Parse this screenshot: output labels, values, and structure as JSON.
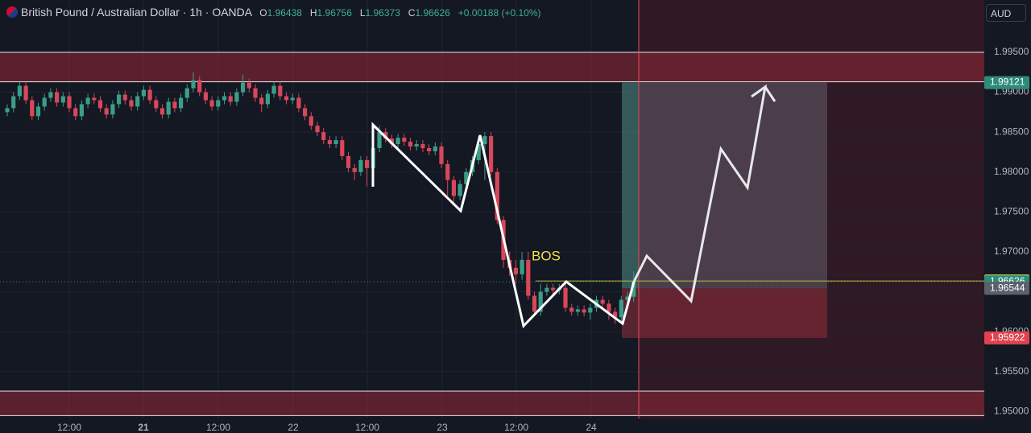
{
  "header": {
    "symbol": "British Pound / Australian Dollar · 1h · OANDA",
    "ohlc": [
      {
        "key": "O",
        "value": "1.96438"
      },
      {
        "key": "H",
        "value": "1.96756"
      },
      {
        "key": "L",
        "value": "1.96373"
      },
      {
        "key": "C",
        "value": "1.96626"
      }
    ],
    "change": "+0.00188 (+0.10%)"
  },
  "currency": "AUD",
  "ylim": [
    1.94913,
    2.00155
  ],
  "yticks": [
    {
      "value": 1.995,
      "label": "1.99500"
    },
    {
      "value": 1.99,
      "label": "1.99000"
    },
    {
      "value": 1.985,
      "label": "1.98500"
    },
    {
      "value": 1.98,
      "label": "1.98000"
    },
    {
      "value": 1.975,
      "label": "1.97500"
    },
    {
      "value": 1.97,
      "label": "1.97000"
    },
    {
      "value": 1.965,
      "label": "1.96500"
    },
    {
      "value": 1.96,
      "label": "1.96000"
    },
    {
      "value": 1.955,
      "label": "1.95500"
    },
    {
      "value": 1.95,
      "label": "1.95000"
    }
  ],
  "time_labels": [
    "12:00",
    "21",
    "12:00",
    "22",
    "12:00",
    "23",
    "12:00",
    "24"
  ],
  "annotation": "BOS",
  "zones": [
    {
      "top": 1.995,
      "bottom": 1.9913
    },
    {
      "top": 1.95256,
      "bottom": 1.9495
    }
  ],
  "position": {
    "target": 1.99121,
    "entry": 1.96544,
    "stop": 1.95922
  },
  "price_tags": [
    {
      "value": 1.99121,
      "label": "1.99121",
      "color": "#2e8b7a"
    },
    {
      "value": 1.96636,
      "label": "1.96636",
      "color": "#f0e14a"
    },
    {
      "value": 1.96626,
      "label": "1.96626",
      "color": "#2e8b7a"
    },
    {
      "value": 1.96544,
      "label": "1.96544",
      "color": "#5d606b"
    },
    {
      "value": 1.95922,
      "label": "1.95922",
      "color": "#e0434f"
    }
  ],
  "up_color": "#3a9e88",
  "down_color": "#d9475a",
  "candles": [
    [
      1.9875,
      1.9885,
      1.987,
      1.988
    ],
    [
      1.988,
      1.99,
      1.9875,
      1.9895
    ],
    [
      1.9895,
      1.9913,
      1.989,
      1.9908
    ],
    [
      1.9908,
      1.9913,
      1.9885,
      1.989
    ],
    [
      1.989,
      1.9895,
      1.9865,
      1.987
    ],
    [
      1.987,
      1.9887,
      1.9865,
      1.9882
    ],
    [
      1.9882,
      1.9898,
      1.9877,
      1.9893
    ],
    [
      1.9893,
      1.9905,
      1.9888,
      1.99
    ],
    [
      1.99,
      1.9905,
      1.9882,
      1.9887
    ],
    [
      1.9887,
      1.99,
      1.9882,
      1.9895
    ],
    [
      1.9895,
      1.99,
      1.9875,
      1.988
    ],
    [
      1.988,
      1.9885,
      1.9865,
      1.987
    ],
    [
      1.987,
      1.989,
      1.9865,
      1.9885
    ],
    [
      1.9885,
      1.9898,
      1.988,
      1.9893
    ],
    [
      1.9893,
      1.9898,
      1.9885,
      1.989
    ],
    [
      1.989,
      1.9895,
      1.9875,
      1.988
    ],
    [
      1.988,
      1.9885,
      1.9867,
      1.9872
    ],
    [
      1.9872,
      1.989,
      1.9867,
      1.9885
    ],
    [
      1.9885,
      1.9902,
      1.988,
      1.9897
    ],
    [
      1.9897,
      1.9902,
      1.9885,
      1.989
    ],
    [
      1.989,
      1.9895,
      1.9877,
      1.9882
    ],
    [
      1.9882,
      1.99,
      1.9877,
      1.9895
    ],
    [
      1.9895,
      1.9908,
      1.989,
      1.9903
    ],
    [
      1.9903,
      1.9908,
      1.9885,
      1.989
    ],
    [
      1.989,
      1.9895,
      1.9875,
      1.988
    ],
    [
      1.988,
      1.9885,
      1.9867,
      1.9872
    ],
    [
      1.9872,
      1.9893,
      1.9867,
      1.9888
    ],
    [
      1.9888,
      1.9893,
      1.9875,
      1.988
    ],
    [
      1.988,
      1.9898,
      1.9875,
      1.9893
    ],
    [
      1.9893,
      1.991,
      1.9888,
      1.9905
    ],
    [
      1.9905,
      1.9925,
      1.99,
      1.9915
    ],
    [
      1.9915,
      1.992,
      1.9895,
      1.99
    ],
    [
      1.99,
      1.9905,
      1.9885,
      1.989
    ],
    [
      1.989,
      1.9895,
      1.9877,
      1.9882
    ],
    [
      1.9882,
      1.9895,
      1.9877,
      1.989
    ],
    [
      1.989,
      1.99,
      1.9885,
      1.9895
    ],
    [
      1.9895,
      1.99,
      1.9883,
      1.9888
    ],
    [
      1.9888,
      1.9905,
      1.9883,
      1.99
    ],
    [
      1.99,
      1.9922,
      1.9895,
      1.9912
    ],
    [
      1.9912,
      1.9917,
      1.99,
      1.9905
    ],
    [
      1.9905,
      1.991,
      1.9888,
      1.9893
    ],
    [
      1.9893,
      1.9898,
      1.9875,
      1.9885
    ],
    [
      1.9885,
      1.9903,
      1.988,
      1.9898
    ],
    [
      1.9898,
      1.9913,
      1.9893,
      1.9908
    ],
    [
      1.9908,
      1.9913,
      1.989,
      1.9895
    ],
    [
      1.9895,
      1.99,
      1.9885,
      1.989
    ],
    [
      1.989,
      1.9898,
      1.9885,
      1.9893
    ],
    [
      1.9893,
      1.9898,
      1.9875,
      1.988
    ],
    [
      1.988,
      1.9885,
      1.9865,
      1.987
    ],
    [
      1.987,
      1.9875,
      1.9853,
      1.9858
    ],
    [
      1.9858,
      1.9863,
      1.9845,
      1.985
    ],
    [
      1.985,
      1.9855,
      1.9835,
      1.984
    ],
    [
      1.984,
      1.9845,
      1.983,
      1.9835
    ],
    [
      1.9835,
      1.9845,
      1.983,
      1.984
    ],
    [
      1.984,
      1.9845,
      1.9815,
      1.982
    ],
    [
      1.982,
      1.9825,
      1.98,
      1.9805
    ],
    [
      1.9805,
      1.981,
      1.979,
      1.98
    ],
    [
      1.98,
      1.982,
      1.9795,
      1.9815
    ],
    [
      1.9815,
      1.982,
      1.9782,
      1.9805
    ],
    [
      1.9805,
      1.986,
      1.98,
      1.983
    ],
    [
      1.983,
      1.9858,
      1.9825,
      1.985
    ],
    [
      1.985,
      1.9855,
      1.9837,
      1.9842
    ],
    [
      1.9842,
      1.9847,
      1.983,
      1.9835
    ],
    [
      1.9835,
      1.9848,
      1.983,
      1.9843
    ],
    [
      1.9843,
      1.9848,
      1.9833,
      1.9838
    ],
    [
      1.9838,
      1.9843,
      1.9827,
      1.9832
    ],
    [
      1.9832,
      1.984,
      1.9827,
      1.9835
    ],
    [
      1.9835,
      1.984,
      1.9825,
      1.983
    ],
    [
      1.983,
      1.9835,
      1.9821,
      1.9826
    ],
    [
      1.9826,
      1.9837,
      1.9821,
      1.9832
    ],
    [
      1.9832,
      1.9837,
      1.9805,
      1.981
    ],
    [
      1.981,
      1.9815,
      1.977,
      1.979
    ],
    [
      1.979,
      1.9795,
      1.976,
      1.977
    ],
    [
      1.977,
      1.979,
      1.9765,
      1.9785
    ],
    [
      1.9785,
      1.9805,
      1.978,
      1.98
    ],
    [
      1.98,
      1.982,
      1.9795,
      1.9815
    ],
    [
      1.9815,
      1.9845,
      1.981,
      1.9835
    ],
    [
      1.9835,
      1.985,
      1.979,
      1.9845
    ],
    [
      1.9845,
      1.985,
      1.9795,
      1.98
    ],
    [
      1.98,
      1.9805,
      1.9735,
      1.974
    ],
    [
      1.974,
      1.9745,
      1.968,
      1.969
    ],
    [
      1.969,
      1.97,
      1.967,
      1.968
    ],
    [
      1.968,
      1.969,
      1.966,
      1.9672
    ],
    [
      1.9672,
      1.97,
      1.9665,
      1.969
    ],
    [
      1.969,
      1.97,
      1.964,
      1.9645
    ],
    [
      1.9645,
      1.965,
      1.962,
      1.9625
    ],
    [
      1.9625,
      1.966,
      1.962,
      1.965
    ],
    [
      1.965,
      1.966,
      1.9645,
      1.9655
    ],
    [
      1.9655,
      1.966,
      1.9647,
      1.9652
    ],
    [
      1.9652,
      1.966,
      1.9647,
      1.9655
    ],
    [
      1.9655,
      1.966,
      1.9625,
      1.963
    ],
    [
      1.963,
      1.9635,
      1.962,
      1.9625
    ],
    [
      1.9625,
      1.9633,
      1.962,
      1.9628
    ],
    [
      1.9628,
      1.9633,
      1.9619,
      1.9624
    ],
    [
      1.9624,
      1.9635,
      1.9615,
      1.963
    ],
    [
      1.963,
      1.9645,
      1.9625,
      1.964
    ],
    [
      1.964,
      1.9645,
      1.963,
      1.9635
    ],
    [
      1.9635,
      1.964,
      1.9615,
      1.9625
    ],
    [
      1.9625,
      1.963,
      1.961,
      1.9618
    ],
    [
      1.9618,
      1.9645,
      1.9613,
      1.964
    ],
    [
      1.964,
      1.965,
      1.9635,
      1.9644
    ],
    [
      1.96438,
      1.96756,
      1.96373,
      1.96626
    ]
  ]
}
